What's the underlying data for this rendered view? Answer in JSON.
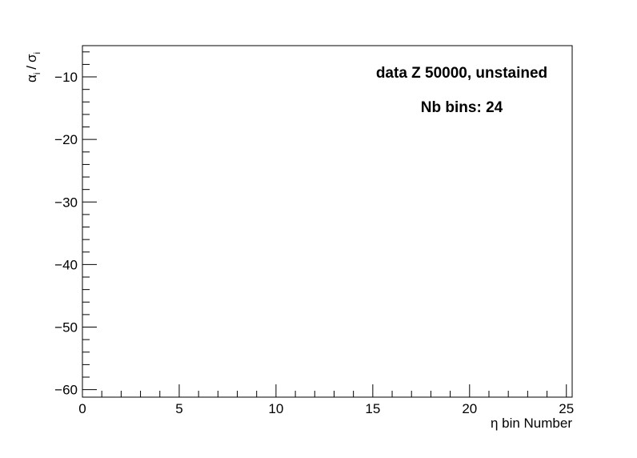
{
  "chart_data": {
    "type": "scatter",
    "title": "",
    "xlabel": "η bin Number",
    "ylabel": {
      "alpha": "α",
      "alpha_sub": "i",
      "slash": "/",
      "sigma": "σ",
      "sigma_sub": "i"
    },
    "xlim": [
      0,
      25.3
    ],
    "ylim": [
      -61.2,
      -5.0
    ],
    "x_ticks": [
      0,
      5,
      10,
      15,
      20,
      25
    ],
    "x_tick_labels": [
      "0",
      "5",
      "10",
      "15",
      "20",
      "25"
    ],
    "y_ticks": [
      -10,
      -20,
      -30,
      -40,
      -50,
      -60
    ],
    "y_tick_labels": [
      "−10",
      "−20",
      "−30",
      "−40",
      "−50",
      "−60"
    ],
    "x_minor_step": 1,
    "y_minor_step": 2,
    "grid": false,
    "legend": null,
    "series": [],
    "annotations": [
      {
        "text": "data Z 50000, unstained"
      },
      {
        "text": "Nb bins: 24"
      }
    ]
  }
}
